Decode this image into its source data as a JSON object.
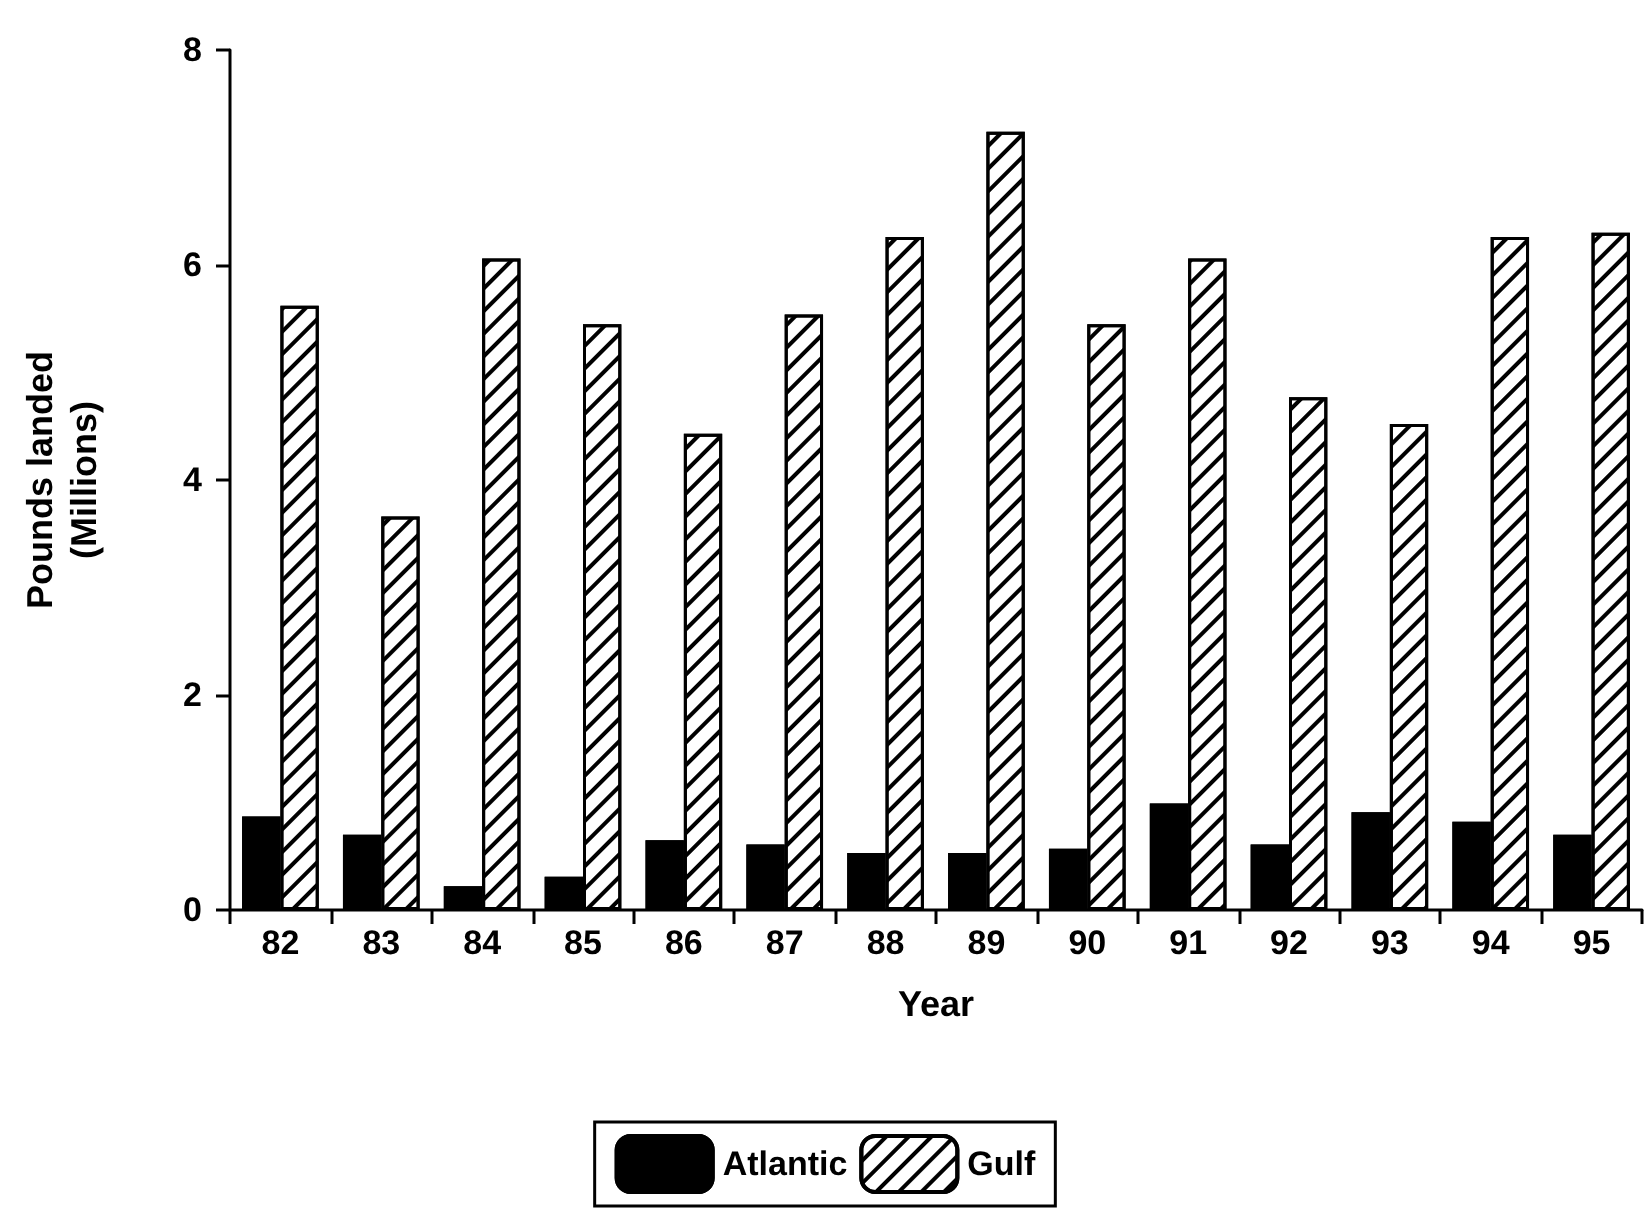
{
  "chart_data": {
    "type": "bar",
    "xlabel": "Year",
    "ylabel": "Pounds landed\n(Millions)",
    "categories": [
      "82",
      "83",
      "84",
      "85",
      "86",
      "87",
      "88",
      "89",
      "90",
      "91",
      "92",
      "93",
      "94",
      "95"
    ],
    "series": [
      {
        "name": "Atlantic",
        "color": "#000000",
        "values": [
          0.87,
          0.7,
          0.22,
          0.31,
          0.65,
          0.61,
          0.53,
          0.53,
          0.57,
          0.99,
          0.61,
          0.91,
          0.82,
          0.7
        ]
      },
      {
        "name": "Gulf",
        "color": "#ffffff",
        "values": [
          5.62,
          3.66,
          6.06,
          5.45,
          4.43,
          5.54,
          6.26,
          7.24,
          5.45,
          6.06,
          4.77,
          4.52,
          6.26,
          6.3
        ]
      }
    ],
    "ylim": [
      0,
      8
    ],
    "yticks": [
      0,
      2,
      4,
      6,
      8
    ],
    "grid": false,
    "legend": "bottom"
  }
}
